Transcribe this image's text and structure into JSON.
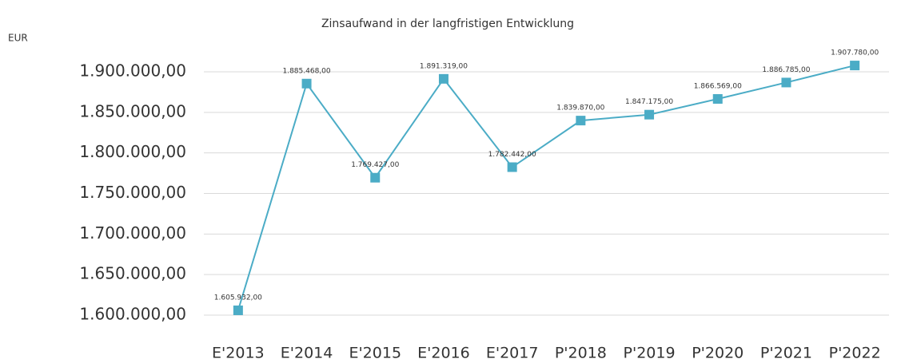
{
  "chart_data": {
    "type": "line",
    "title": "Zinsaufwand in der langfristigen Entwicklung",
    "y_label": "EUR",
    "categories": [
      "E'2013",
      "E'2014",
      "E'2015",
      "E'2016",
      "E'2017",
      "P'2018",
      "P'2019",
      "P'2020",
      "P'2021",
      "P'2022"
    ],
    "series": [
      {
        "name": "Zinsaufwand",
        "color": "#4bacc6",
        "values": [
          1605932,
          1885468,
          1769427,
          1891319,
          1782442,
          1839870,
          1847175,
          1866569,
          1886785,
          1907780
        ],
        "value_labels": [
          "1.605.932,00",
          "1.885.468,00",
          "1.769.427,00",
          "1.891.319,00",
          "1.782.442,00",
          "1.839.870,00",
          "1.847.175,00",
          "1.866.569,00",
          "1.886.785,00",
          "1.907.780,00"
        ]
      }
    ],
    "ylim": [
      1600000,
      1900000
    ],
    "yticks": [
      {
        "value": 1600000,
        "label": "1.600.000,00"
      },
      {
        "value": 1650000,
        "label": "1.650.000,00"
      },
      {
        "value": 1700000,
        "label": "1.700.000,00"
      },
      {
        "value": 1750000,
        "label": "1.750.000,00"
      },
      {
        "value": 1800000,
        "label": "1.800.000,00"
      },
      {
        "value": 1850000,
        "label": "1.850.000,00"
      },
      {
        "value": 1900000,
        "label": "1.900.000,00"
      }
    ],
    "grid": true
  }
}
